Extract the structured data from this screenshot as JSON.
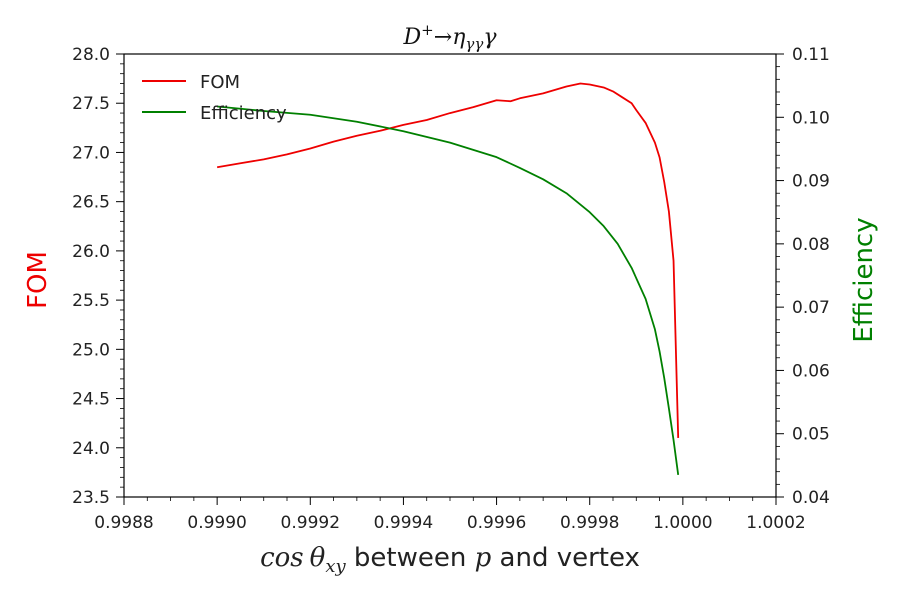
{
  "chart_data": {
    "type": "line",
    "title": "D⁺→η_γγ γ",
    "title_parts": {
      "main": "D",
      "sup": "+",
      "arrow": "→",
      "eta": "η",
      "sub": "γγ",
      "gamma": "γ"
    },
    "xlabel": "cos θ_xy between p and vertex",
    "xlabel_parts": {
      "cos": "cos",
      "theta": "θ",
      "sub": "xy",
      "mid": " between ",
      "p": "p",
      "end": " and vertex"
    },
    "ylabel_left": "FOM",
    "ylabel_right": "Efficiency",
    "xlim": [
      0.9988,
      1.0002
    ],
    "ylim_left": [
      23.5,
      28.0
    ],
    "ylim_right": [
      0.04,
      0.11
    ],
    "x_ticks": [
      "0.9988",
      "0.9990",
      "0.9992",
      "0.9994",
      "0.9996",
      "0.9998",
      "1.0000",
      "1.0002"
    ],
    "y_left_ticks": [
      "23.5",
      "24.0",
      "24.5",
      "25.0",
      "25.5",
      "26.0",
      "26.5",
      "27.0",
      "27.5",
      "28.0"
    ],
    "y_right_ticks": [
      "0.04",
      "0.05",
      "0.06",
      "0.07",
      "0.08",
      "0.09",
      "0.10",
      "0.11"
    ],
    "legend_position": "upper-left",
    "grid": false,
    "series": [
      {
        "name": "FOM",
        "axis": "left",
        "color": "#ee0000",
        "points": [
          [
            0.999,
            26.85
          ],
          [
            0.99905,
            26.89
          ],
          [
            0.9991,
            26.93
          ],
          [
            0.99915,
            26.98
          ],
          [
            0.9992,
            27.04
          ],
          [
            0.99925,
            27.11
          ],
          [
            0.9993,
            27.17
          ],
          [
            0.99935,
            27.22
          ],
          [
            0.9994,
            27.28
          ],
          [
            0.99945,
            27.33
          ],
          [
            0.9995,
            27.4
          ],
          [
            0.99955,
            27.46
          ],
          [
            0.9996,
            27.53
          ],
          [
            0.99963,
            27.52
          ],
          [
            0.99965,
            27.55
          ],
          [
            0.9997,
            27.6
          ],
          [
            0.99975,
            27.67
          ],
          [
            0.99978,
            27.7
          ],
          [
            0.9998,
            27.69
          ],
          [
            0.99983,
            27.66
          ],
          [
            0.99985,
            27.62
          ],
          [
            0.99987,
            27.56
          ],
          [
            0.99989,
            27.5
          ],
          [
            0.9999,
            27.43
          ],
          [
            0.99992,
            27.3
          ],
          [
            0.99994,
            27.1
          ],
          [
            0.99995,
            26.95
          ],
          [
            0.99996,
            26.7
          ],
          [
            0.99997,
            26.4
          ],
          [
            0.99998,
            25.9
          ],
          [
            0.99999,
            24.1
          ]
        ]
      },
      {
        "name": "Efficiency",
        "axis": "right",
        "color": "#008000",
        "points": [
          [
            0.999,
            0.1017
          ],
          [
            0.9991,
            0.101
          ],
          [
            0.9992,
            0.1004
          ],
          [
            0.9993,
            0.0993
          ],
          [
            0.9994,
            0.0978
          ],
          [
            0.9995,
            0.096
          ],
          [
            0.9996,
            0.0937
          ],
          [
            0.99965,
            0.092
          ],
          [
            0.9997,
            0.0902
          ],
          [
            0.99975,
            0.088
          ],
          [
            0.9998,
            0.085
          ],
          [
            0.99983,
            0.0828
          ],
          [
            0.99986,
            0.08
          ],
          [
            0.99989,
            0.0762
          ],
          [
            0.99992,
            0.0713
          ],
          [
            0.99994,
            0.0665
          ],
          [
            0.99995,
            0.063
          ],
          [
            0.99996,
            0.0588
          ],
          [
            0.99997,
            0.054
          ],
          [
            0.99998,
            0.049
          ],
          [
            0.99999,
            0.0435
          ]
        ]
      }
    ]
  }
}
